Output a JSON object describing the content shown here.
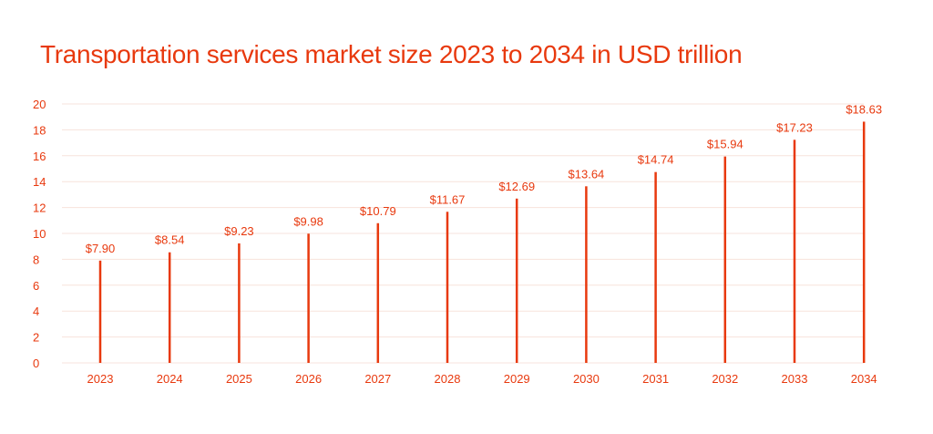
{
  "chart_data": {
    "type": "bar",
    "title": "Transportation services market size 2023 to 2034 in USD trillion",
    "xlabel": "",
    "ylabel": "",
    "ylim": [
      0,
      20
    ],
    "yticks": [
      0,
      2,
      4,
      6,
      8,
      10,
      12,
      14,
      16,
      18,
      20
    ],
    "grid": true,
    "categories": [
      "2023",
      "2024",
      "2025",
      "2026",
      "2027",
      "2028",
      "2029",
      "2030",
      "2031",
      "2032",
      "2033",
      "2034"
    ],
    "values": [
      7.9,
      8.54,
      9.23,
      9.98,
      10.79,
      11.67,
      12.69,
      13.64,
      14.74,
      15.94,
      17.23,
      18.63
    ],
    "data_labels": [
      "$7.90",
      "$8.54",
      "$9.23",
      "$9.98",
      "$10.79",
      "$11.67",
      "$12.69",
      "$13.64",
      "$14.74",
      "$15.94",
      "$17.23",
      "$18.63"
    ],
    "colors": {
      "accent": "#e8390e",
      "grid": "#f7e3dc"
    }
  }
}
